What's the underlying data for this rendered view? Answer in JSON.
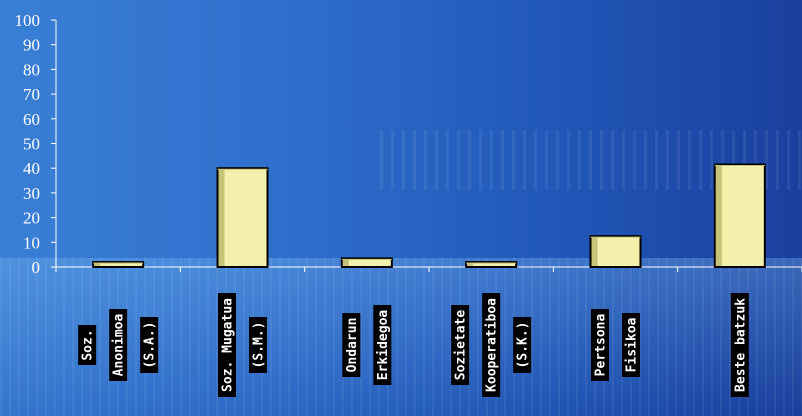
{
  "chart_data": {
    "type": "bar",
    "title": "",
    "xlabel": "",
    "ylabel": "",
    "ylim": [
      0,
      100
    ],
    "yticks": [
      0,
      10,
      20,
      30,
      40,
      50,
      60,
      70,
      80,
      90,
      100
    ],
    "categories": [
      [
        "Soz.",
        "Anonimoa",
        "(S.A.)"
      ],
      [
        "Soz. Mugatua",
        "(S.M.)"
      ],
      [
        "Ondarun",
        "Erkidegoa"
      ],
      [
        "Sozietate",
        "Kooperatiboa",
        "(S.K.)"
      ],
      [
        "Pertsona",
        "Fisikoa"
      ],
      [
        "Beste batzuk"
      ]
    ],
    "values": [
      2,
      40,
      3.5,
      2,
      12.5,
      41.5
    ],
    "grid": false,
    "legend": "none",
    "colors": {
      "bar_face": "#f2f0ab",
      "bar_shade": "#c7c47a",
      "bar_outline": "#000000",
      "axis": "#ffffff",
      "tick_text": "#ffffff",
      "label_box": "#000000",
      "label_text": "#ffffff"
    }
  }
}
